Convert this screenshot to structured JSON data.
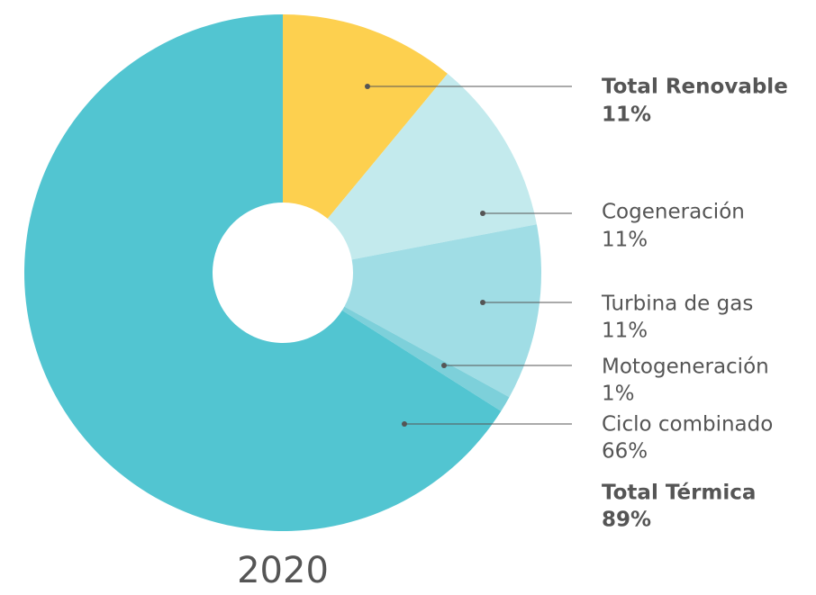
{
  "chart_data": {
    "type": "pie",
    "title": "2020",
    "categories": [
      "Total Renovable",
      "Cogeneración",
      "Turbina de gas",
      "Motogeneración",
      "Ciclo combinado"
    ],
    "values": [
      11,
      11,
      11,
      1,
      66
    ],
    "value_labels": [
      "11%",
      "11%",
      "11%",
      "1%",
      "66%"
    ],
    "colors": [
      "#fdd04f",
      "#c3eaed",
      "#a0dde5",
      "#7dd0da",
      "#52c5d1"
    ],
    "annotation": {
      "text": "Total Térmica",
      "value": 89,
      "value_label": "89%"
    }
  }
}
